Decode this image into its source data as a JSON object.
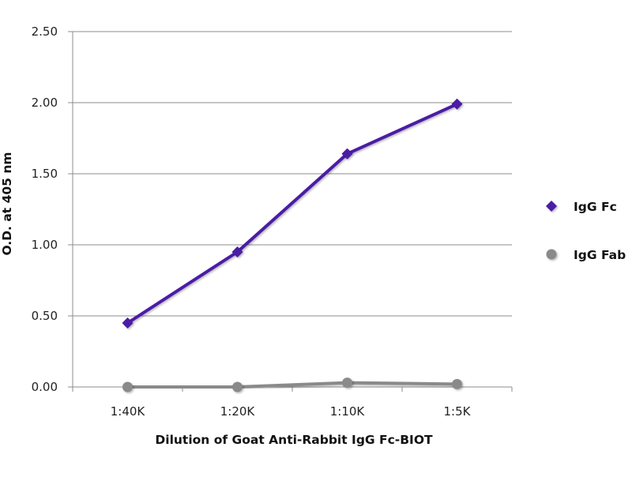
{
  "chart_data": {
    "type": "line",
    "title": "",
    "xlabel": "Dilution of Goat Anti-Rabbit IgG Fc-BIOT",
    "ylabel": "O.D. at 405 nm",
    "categories": [
      "1:40K",
      "1:20K",
      "1:10K",
      "1:5K"
    ],
    "ylim": [
      0,
      2.5
    ],
    "yticks": [
      0,
      0.5,
      1.0,
      1.5,
      2.0,
      2.5
    ],
    "ytick_labels": [
      "0.00",
      "0.50",
      "1.00",
      "1.50",
      "2.00",
      "2.50"
    ],
    "grid": true,
    "legend_position": "right",
    "series": [
      {
        "name": "IgG Fc",
        "values": [
          0.45,
          0.95,
          1.64,
          1.99
        ],
        "color": "#4B1BA6",
        "marker": "diamond"
      },
      {
        "name": "IgG Fab",
        "values": [
          0.0,
          0.0,
          0.03,
          0.02
        ],
        "color": "#8A8A8A",
        "marker": "circle"
      }
    ]
  }
}
